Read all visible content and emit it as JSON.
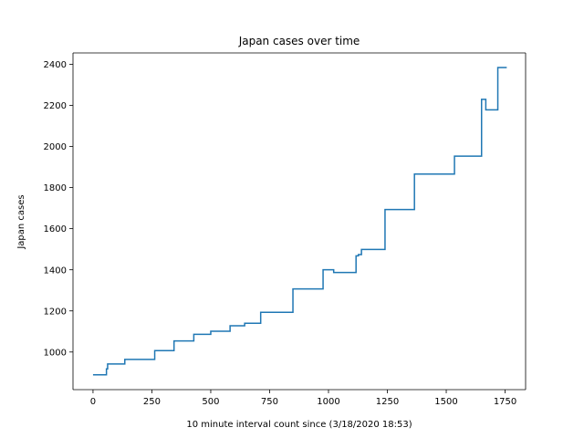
{
  "chart_data": {
    "type": "line",
    "title": "Japan cases over time",
    "xlabel": "10 minute interval count since (3/18/2020 18:53)",
    "ylabel": "Japan cases",
    "xlim": [
      -85,
      1837
    ],
    "ylim": [
      817,
      2455
    ],
    "xticks": [
      0,
      250,
      500,
      750,
      1000,
      1250,
      1500,
      1750
    ],
    "xtick_labels": [
      "0",
      "250",
      "500",
      "750",
      "1000",
      "1250",
      "1500",
      "1750"
    ],
    "yticks": [
      1000,
      1200,
      1400,
      1600,
      1800,
      2000,
      2200,
      2400
    ],
    "ytick_labels": [
      "1000",
      "1200",
      "1400",
      "1600",
      "1800",
      "2000",
      "2200",
      "2400"
    ],
    "grid": false,
    "line_color": "#1f77b4",
    "series": [
      {
        "drawstyle": "steps-post",
        "x": [
          0,
          57,
          62,
          135,
          262,
          344,
          428,
          500,
          582,
          644,
          712,
          849,
          977,
          1022,
          1117,
          1127,
          1140,
          1240,
          1365,
          1535,
          1650,
          1652,
          1668,
          1719,
          1757
        ],
        "y": [
          889,
          918,
          942,
          964,
          1007,
          1054,
          1086,
          1101,
          1128,
          1140,
          1193,
          1307,
          1400,
          1387,
          1468,
          1474,
          1499,
          1693,
          1866,
          1953,
          2229,
          2229,
          2178,
          2384,
          2384
        ]
      }
    ]
  }
}
